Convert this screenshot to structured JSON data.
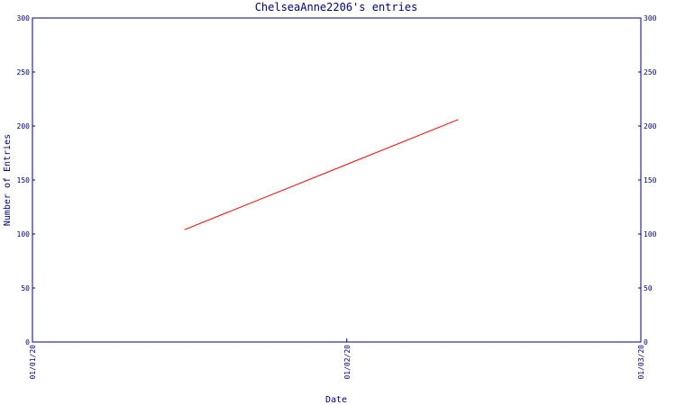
{
  "chart_data": {
    "type": "line",
    "title": "ChelseaAnne2206's entries",
    "xlabel": "Date",
    "ylabel": "Number of Entries",
    "x_ticks": [
      "01/01/20",
      "01/02/20",
      "01/03/20"
    ],
    "ylim": [
      0,
      300
    ],
    "y_ticks": [
      0,
      50,
      100,
      150,
      200,
      250,
      300
    ],
    "grid": false,
    "series": [
      {
        "color": "#ff0000",
        "points": [
          {
            "x": "2020-01-16",
            "y": 104
          },
          {
            "x": "2020-02-12",
            "y": 206
          }
        ]
      }
    ],
    "colors": {
      "axis": "#000080",
      "line": "#ff0000"
    }
  }
}
